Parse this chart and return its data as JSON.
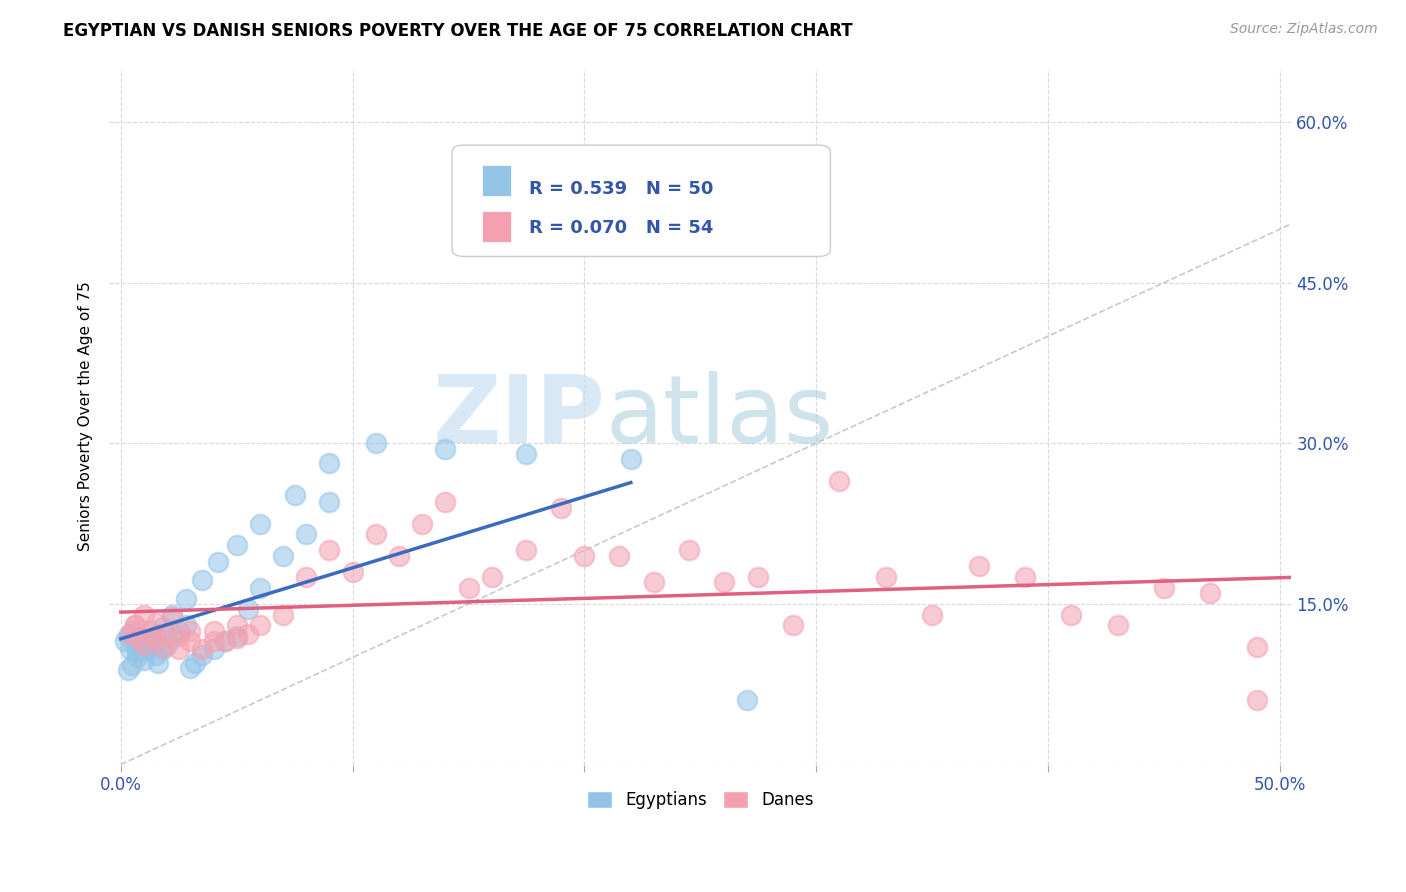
{
  "title": "EGYPTIAN VS DANISH SENIORS POVERTY OVER THE AGE OF 75 CORRELATION CHART",
  "source": "Source: ZipAtlas.com",
  "ylabel": "Seniors Poverty Over the Age of 75",
  "xlabel": "",
  "xlim": [
    -0.005,
    0.505
  ],
  "ylim": [
    0.0,
    0.65
  ],
  "xtick_positions": [
    0.0,
    0.1,
    0.2,
    0.3,
    0.4,
    0.5
  ],
  "xtick_labels": [
    "0.0%",
    "",
    "",
    "",
    "",
    "50.0%"
  ],
  "ytick_positions_right": [
    0.15,
    0.3,
    0.45,
    0.6
  ],
  "ytick_labels_right": [
    "15.0%",
    "30.0%",
    "45.0%",
    "60.0%"
  ],
  "egyptian_color": "#93c4e8",
  "danish_color": "#f4a0b0",
  "trendline_egyptian_color": "#3a6bbf",
  "trendline_danish_color": "#e06080",
  "diagonal_color": "#bbbbbb",
  "R_egyptian": 0.539,
  "N_egyptian": 50,
  "R_danish": 0.07,
  "N_danish": 54,
  "legend_text_color": "#3355aa",
  "watermark_zip": "ZIP",
  "watermark_atlas": "atlas",
  "background_color": "#ffffff",
  "grid_color": "#d8d8d8",
  "egyptian_x": [
    0.002,
    0.003,
    0.004,
    0.005,
    0.006,
    0.007,
    0.008,
    0.009,
    0.01,
    0.011,
    0.012,
    0.013,
    0.015,
    0.016,
    0.018,
    0.02,
    0.022,
    0.025,
    0.028,
    0.03,
    0.032,
    0.035,
    0.04,
    0.045,
    0.05,
    0.055,
    0.06,
    0.07,
    0.08,
    0.09,
    0.003,
    0.005,
    0.007,
    0.009,
    0.012,
    0.015,
    0.018,
    0.022,
    0.028,
    0.035,
    0.042,
    0.05,
    0.06,
    0.075,
    0.09,
    0.11,
    0.14,
    0.175,
    0.22,
    0.27
  ],
  "egyptian_y": [
    0.115,
    0.12,
    0.108,
    0.125,
    0.112,
    0.105,
    0.118,
    0.113,
    0.098,
    0.107,
    0.115,
    0.11,
    0.102,
    0.095,
    0.108,
    0.112,
    0.118,
    0.125,
    0.13,
    0.09,
    0.095,
    0.102,
    0.108,
    0.115,
    0.12,
    0.145,
    0.165,
    0.195,
    0.215,
    0.245,
    0.088,
    0.093,
    0.1,
    0.107,
    0.114,
    0.121,
    0.128,
    0.14,
    0.155,
    0.172,
    0.189,
    0.205,
    0.225,
    0.252,
    0.282,
    0.3,
    0.295,
    0.29,
    0.285,
    0.06
  ],
  "danish_x": [
    0.004,
    0.006,
    0.008,
    0.01,
    0.013,
    0.015,
    0.018,
    0.022,
    0.025,
    0.03,
    0.035,
    0.04,
    0.045,
    0.05,
    0.055,
    0.06,
    0.07,
    0.08,
    0.09,
    0.1,
    0.11,
    0.12,
    0.13,
    0.14,
    0.15,
    0.16,
    0.175,
    0.19,
    0.2,
    0.215,
    0.23,
    0.245,
    0.26,
    0.275,
    0.29,
    0.31,
    0.33,
    0.35,
    0.37,
    0.39,
    0.41,
    0.43,
    0.45,
    0.47,
    0.49,
    0.006,
    0.01,
    0.015,
    0.02,
    0.025,
    0.03,
    0.04,
    0.05,
    0.49
  ],
  "danish_y": [
    0.122,
    0.13,
    0.118,
    0.14,
    0.125,
    0.132,
    0.11,
    0.138,
    0.12,
    0.115,
    0.108,
    0.125,
    0.115,
    0.118,
    0.122,
    0.13,
    0.14,
    0.175,
    0.2,
    0.18,
    0.215,
    0.195,
    0.225,
    0.245,
    0.165,
    0.175,
    0.2,
    0.24,
    0.195,
    0.195,
    0.17,
    0.2,
    0.17,
    0.175,
    0.13,
    0.265,
    0.175,
    0.14,
    0.185,
    0.175,
    0.14,
    0.13,
    0.165,
    0.16,
    0.11,
    0.13,
    0.112,
    0.118,
    0.12,
    0.108,
    0.125,
    0.115,
    0.13,
    0.06
  ]
}
